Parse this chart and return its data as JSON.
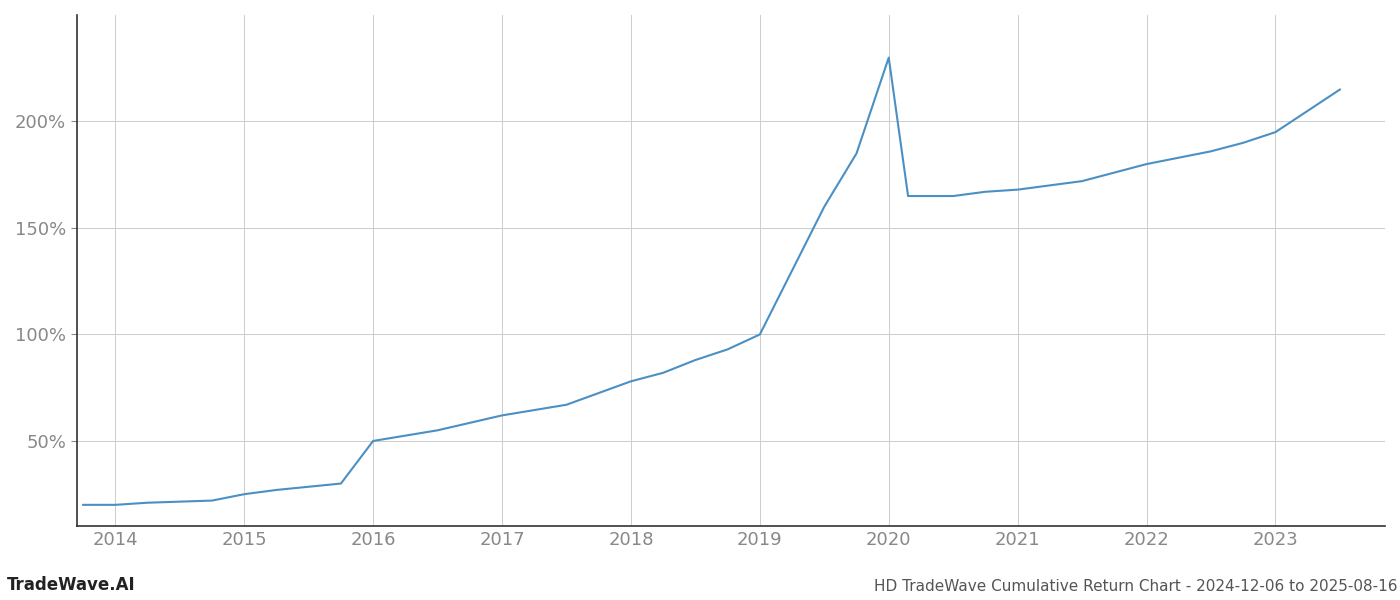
{
  "title": "HD TradeWave Cumulative Return Chart - 2024-12-06 to 2025-08-16",
  "watermark": "TradeWave.AI",
  "x_values": [
    2013.75,
    2014.0,
    2014.25,
    2014.75,
    2015.0,
    2015.25,
    2015.75,
    2016.0,
    2016.5,
    2017.0,
    2017.5,
    2018.0,
    2018.25,
    2018.5,
    2018.75,
    2019.0,
    2019.25,
    2019.5,
    2019.75,
    2020.0,
    2020.15,
    2020.5,
    2020.75,
    2021.0,
    2021.25,
    2021.5,
    2021.75,
    2022.0,
    2022.25,
    2022.5,
    2022.75,
    2023.0,
    2023.25,
    2023.5
  ],
  "y_values": [
    20,
    20,
    21,
    22,
    25,
    27,
    30,
    50,
    55,
    62,
    67,
    78,
    82,
    88,
    93,
    100,
    130,
    160,
    185,
    230,
    165,
    165,
    167,
    168,
    170,
    172,
    176,
    180,
    183,
    186,
    190,
    195,
    205,
    215
  ],
  "line_color": "#4a90c4",
  "line_width": 1.5,
  "background_color": "#ffffff",
  "grid_color": "#cccccc",
  "tick_color": "#888888",
  "title_color": "#555555",
  "watermark_color": "#222222",
  "yticks": [
    50,
    100,
    150,
    200
  ],
  "ytick_labels": [
    "50%",
    "100%",
    "150%",
    "200%"
  ],
  "xticks": [
    2014,
    2015,
    2016,
    2017,
    2018,
    2019,
    2020,
    2021,
    2022,
    2023
  ],
  "xlim": [
    2013.7,
    2023.85
  ],
  "ylim": [
    10,
    250
  ]
}
